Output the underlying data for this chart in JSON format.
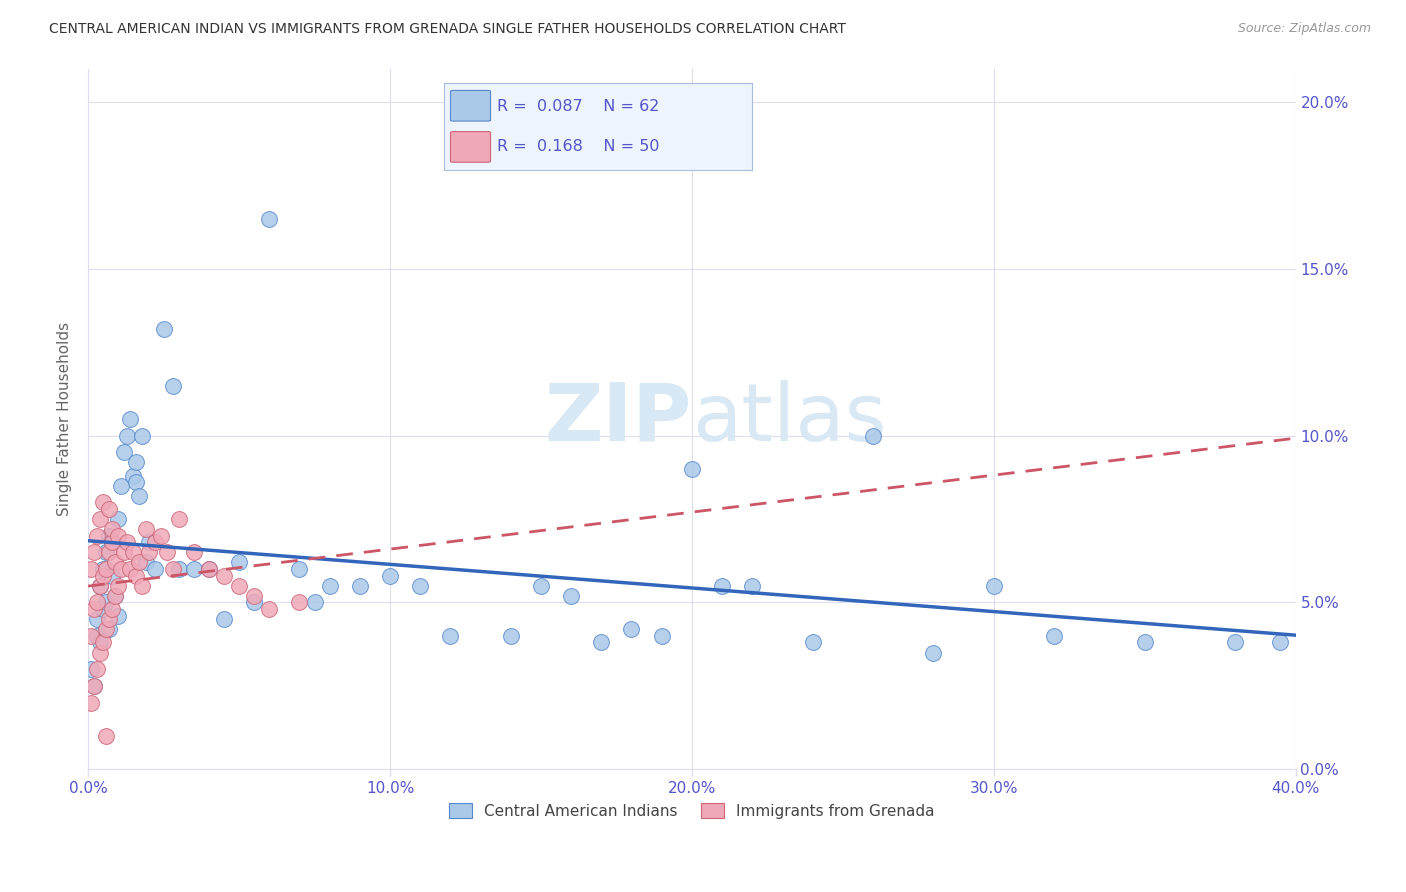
{
  "title": "CENTRAL AMERICAN INDIAN VS IMMIGRANTS FROM GRENADA SINGLE FATHER HOUSEHOLDS CORRELATION CHART",
  "source": "Source: ZipAtlas.com",
  "ylabel": "Single Father Households",
  "xlim": [
    0.0,
    0.4
  ],
  "ylim": [
    0.0,
    0.21
  ],
  "xticks": [
    0.0,
    0.1,
    0.2,
    0.3,
    0.4
  ],
  "xtick_labels": [
    "0.0%",
    "10.0%",
    "20.0%",
    "30.0%",
    "40.0%"
  ],
  "yticks": [
    0.0,
    0.05,
    0.1,
    0.15,
    0.2
  ],
  "ytick_labels": [
    "0.0%",
    "5.0%",
    "10.0%",
    "15.0%",
    "20.0%"
  ],
  "blue_color": "#aac8e8",
  "blue_edge_color": "#5588cc",
  "blue_line_color": "#3366bb",
  "pink_color": "#f0a8b8",
  "pink_edge_color": "#cc6677",
  "pink_line_color": "#cc5566",
  "tick_color": "#5555cc",
  "grid_color": "#ddddee",
  "watermark_color": "#d8e8f4",
  "blue_scatter_x": [
    0.001,
    0.002,
    0.003,
    0.003,
    0.004,
    0.004,
    0.005,
    0.005,
    0.006,
    0.006,
    0.007,
    0.007,
    0.008,
    0.008,
    0.009,
    0.01,
    0.01,
    0.011,
    0.012,
    0.013,
    0.014,
    0.015,
    0.016,
    0.016,
    0.017,
    0.018,
    0.019,
    0.02,
    0.022,
    0.025,
    0.028,
    0.03,
    0.035,
    0.04,
    0.045,
    0.05,
    0.055,
    0.06,
    0.07,
    0.075,
    0.08,
    0.09,
    0.1,
    0.11,
    0.12,
    0.14,
    0.15,
    0.16,
    0.17,
    0.18,
    0.19,
    0.2,
    0.21,
    0.22,
    0.24,
    0.26,
    0.28,
    0.3,
    0.32,
    0.35,
    0.38,
    0.395
  ],
  "blue_scatter_y": [
    0.03,
    0.025,
    0.04,
    0.045,
    0.038,
    0.055,
    0.048,
    0.06,
    0.05,
    0.065,
    0.042,
    0.07,
    0.058,
    0.068,
    0.052,
    0.075,
    0.046,
    0.085,
    0.095,
    0.1,
    0.105,
    0.088,
    0.086,
    0.092,
    0.082,
    0.1,
    0.062,
    0.068,
    0.06,
    0.132,
    0.115,
    0.06,
    0.06,
    0.06,
    0.045,
    0.062,
    0.05,
    0.165,
    0.06,
    0.05,
    0.055,
    0.055,
    0.058,
    0.055,
    0.04,
    0.04,
    0.055,
    0.052,
    0.038,
    0.042,
    0.04,
    0.09,
    0.055,
    0.055,
    0.038,
    0.1,
    0.035,
    0.055,
    0.04,
    0.038,
    0.038,
    0.038
  ],
  "pink_scatter_x": [
    0.001,
    0.001,
    0.001,
    0.002,
    0.002,
    0.002,
    0.003,
    0.003,
    0.003,
    0.004,
    0.004,
    0.004,
    0.005,
    0.005,
    0.005,
    0.006,
    0.006,
    0.006,
    0.007,
    0.007,
    0.007,
    0.008,
    0.008,
    0.008,
    0.009,
    0.009,
    0.01,
    0.01,
    0.011,
    0.012,
    0.013,
    0.014,
    0.015,
    0.016,
    0.017,
    0.018,
    0.019,
    0.02,
    0.022,
    0.024,
    0.026,
    0.028,
    0.03,
    0.035,
    0.04,
    0.045,
    0.05,
    0.055,
    0.06,
    0.07
  ],
  "pink_scatter_y": [
    0.02,
    0.04,
    0.06,
    0.025,
    0.048,
    0.065,
    0.03,
    0.05,
    0.07,
    0.035,
    0.055,
    0.075,
    0.038,
    0.058,
    0.08,
    0.042,
    0.06,
    0.01,
    0.045,
    0.065,
    0.078,
    0.048,
    0.068,
    0.072,
    0.052,
    0.062,
    0.055,
    0.07,
    0.06,
    0.065,
    0.068,
    0.06,
    0.065,
    0.058,
    0.062,
    0.055,
    0.072,
    0.065,
    0.068,
    0.07,
    0.065,
    0.06,
    0.075,
    0.065,
    0.06,
    0.058,
    0.055,
    0.052,
    0.048,
    0.05
  ]
}
